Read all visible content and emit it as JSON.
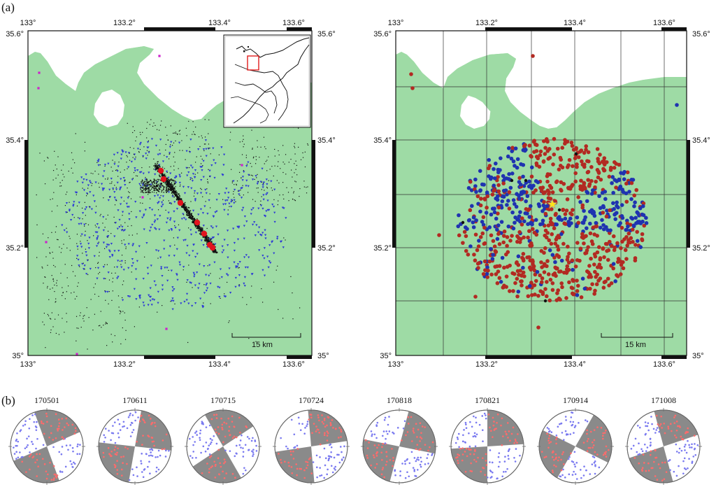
{
  "figure": {
    "panel_a_label": "(a)",
    "panel_b_label": "(b)"
  },
  "colors": {
    "land": "#9edba5",
    "sea": "#ffffff",
    "grid": "#333333",
    "station": "#2c39d6",
    "aftershock": "#111111",
    "mainshock": "#e1141e",
    "cluster_red": "#b22a22",
    "cluster_blue": "#1f33b0",
    "inset_box": "#e11c1c",
    "magenta": "#cc22cc",
    "star": "#ffe21a",
    "mech_dark": "#8a8a8a",
    "mech_red": "#ff6b6b",
    "mech_blue": "#7a7af0"
  },
  "map_axes": {
    "lon_ticks": [
      "133°",
      "133.2°",
      "133.4°",
      "133.6°"
    ],
    "lat_ticks": [
      "35°",
      "35.2°",
      "35.4°",
      "35.6°"
    ],
    "lon_range": [
      133.0,
      133.66
    ],
    "lat_range": [
      35.0,
      35.61
    ]
  },
  "left_map": {
    "scale_bar_label": "15 km",
    "has_inset": true
  },
  "right_map": {
    "scale_bar_label": "15 km",
    "grid": true
  },
  "mechanisms": [
    {
      "id": "170501",
      "label": "170501",
      "rotation": -20
    },
    {
      "id": "170611",
      "label": "170611",
      "rotation": 10
    },
    {
      "id": "170715",
      "label": "170715",
      "rotation": -30
    },
    {
      "id": "170724",
      "label": "170724",
      "rotation": -5
    },
    {
      "id": "170818",
      "label": "170818",
      "rotation": 15
    },
    {
      "id": "170821",
      "label": "170821",
      "rotation": 0
    },
    {
      "id": "170914",
      "label": "170914",
      "rotation": 30
    },
    {
      "id": "171008",
      "label": "171008",
      "rotation": -15
    }
  ]
}
